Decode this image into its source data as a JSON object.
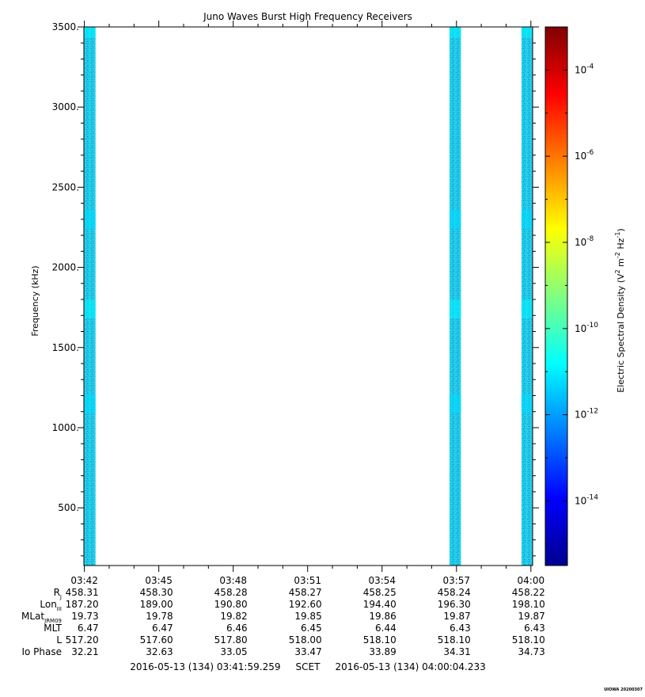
{
  "chart_data": {
    "type": "heatmap",
    "title": "Juno Waves Burst High Frequency Receivers",
    "ylabel": "Frequency (kHz)",
    "colorbar_label": "Electric Spectral Density (V",
    "colorbar_label_sup1": "2",
    "colorbar_label_mid": " m",
    "colorbar_label_sup2": "-2",
    "colorbar_label_mid2": " Hz",
    "colorbar_label_sup3": "-1",
    "colorbar_label_end": ")",
    "ylim": [
      140,
      3500
    ],
    "y_ticks": [
      {
        "value": 500,
        "label": "500."
      },
      {
        "value": 1000,
        "label": "1000."
      },
      {
        "value": 1500,
        "label": "1500."
      },
      {
        "value": 2000,
        "label": "2000."
      },
      {
        "value": 2500,
        "label": "2500."
      },
      {
        "value": 3000,
        "label": "3000."
      },
      {
        "value": 3500,
        "label": "3500."
      }
    ],
    "x_minutes_range": [
      221.98,
      240.07
    ],
    "x_ticks": [
      {
        "minutes": 222,
        "label": "03:42"
      },
      {
        "minutes": 225,
        "label": "03:45"
      },
      {
        "minutes": 228,
        "label": "03:48"
      },
      {
        "minutes": 231,
        "label": "03:51"
      },
      {
        "minutes": 234,
        "label": "03:54"
      },
      {
        "minutes": 237,
        "label": "03:57"
      },
      {
        "minutes": 240,
        "label": "04:00"
      }
    ],
    "colorbar_log_range": [
      -15.5,
      -3.0
    ],
    "colorbar_ticks": [
      {
        "base": "10",
        "exp": "-4",
        "log": -4
      },
      {
        "base": "10",
        "exp": "-6",
        "log": -6
      },
      {
        "base": "10",
        "exp": "-8",
        "log": -8
      },
      {
        "base": "10",
        "exp": "-10",
        "log": -10
      },
      {
        "base": "10",
        "exp": "-12",
        "log": -12
      },
      {
        "base": "10",
        "exp": "-14",
        "log": -14
      }
    ],
    "data_bursts": [
      {
        "start_min": 221.98,
        "end_min": 222.45,
        "log_density": -11.7
      },
      {
        "start_min": 236.72,
        "end_min": 237.18,
        "log_density": -11.7
      },
      {
        "start_min": 239.62,
        "end_min": 240.07,
        "log_density": -11.7
      }
    ],
    "enhanced_bands_khz": [
      {
        "center": 2300,
        "log_density": -11.2
      },
      {
        "center": 1740,
        "log_density": -10.9
      },
      {
        "center": 1150,
        "log_density": -11.2
      },
      {
        "center": 3490,
        "log_density": -10.9
      }
    ],
    "ephemeris": {
      "rows": [
        {
          "label": "R",
          "sub": "J",
          "values": [
            "458.31",
            "458.30",
            "458.28",
            "458.27",
            "458.25",
            "458.24",
            "458.22"
          ]
        },
        {
          "label": "Lon",
          "sub": "III",
          "values": [
            "187.20",
            "189.00",
            "190.80",
            "192.60",
            "194.40",
            "196.30",
            "198.10"
          ]
        },
        {
          "label": "MLat",
          "sub": "JRM09",
          "values": [
            "19.73",
            "19.78",
            "19.82",
            "19.85",
            "19.86",
            "19.87",
            "19.87"
          ]
        },
        {
          "label": "MLT",
          "sub": "",
          "values": [
            "6.47",
            "6.47",
            "6.46",
            "6.45",
            "6.44",
            "6.43",
            "6.43"
          ]
        },
        {
          "label": "L",
          "sub": "",
          "values": [
            "517.20",
            "517.60",
            "517.80",
            "518.00",
            "518.10",
            "518.10",
            "518.10"
          ]
        },
        {
          "label": "Io Phase",
          "sub": "",
          "values": [
            "32.21",
            "32.63",
            "33.05",
            "33.47",
            "33.89",
            "34.31",
            "34.73"
          ]
        }
      ]
    },
    "time_range_text": "2016-05-13 (134) 03:41:59.259     SCET     2016-05-13 (134) 04:00:04.233",
    "footer_text": "UIOWA 20200307"
  }
}
